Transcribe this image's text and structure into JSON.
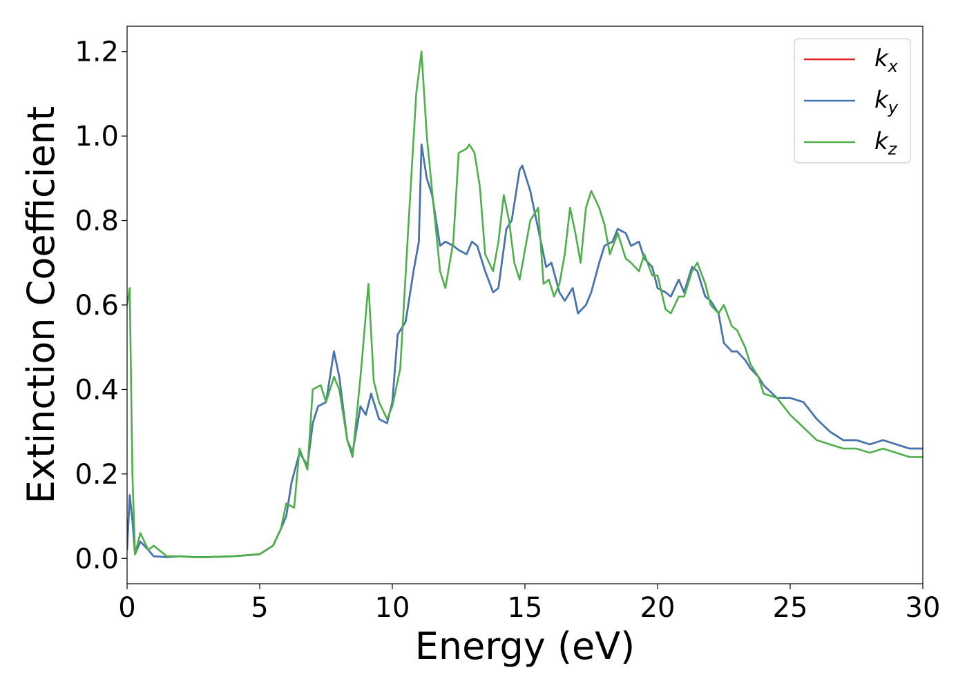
{
  "chart_data": {
    "type": "line",
    "title": "",
    "xlabel": "Energy (eV)",
    "ylabel": "Extinction Coefficient",
    "xlim": [
      0,
      30
    ],
    "ylim": [
      -0.06,
      1.26
    ],
    "xticks": [
      0,
      5,
      10,
      15,
      20,
      25,
      30
    ],
    "xtick_labels": [
      "0",
      "5",
      "10",
      "15",
      "20",
      "25",
      "30"
    ],
    "yticks": [
      0.0,
      0.2,
      0.4,
      0.6,
      0.8,
      1.0,
      1.2
    ],
    "ytick_labels": [
      "0.0",
      "0.2",
      "0.4",
      "0.6",
      "0.8",
      "1.0",
      "1.2"
    ],
    "grid": false,
    "legend_position": "top-right",
    "series": [
      {
        "name": "k_x",
        "legend_base": "k",
        "legend_sub": "x",
        "color": "#e41a1c",
        "x": [
          0,
          0.1,
          0.2,
          0.3,
          0.5,
          0.8,
          1.0,
          1.5,
          2.0,
          2.5,
          3.0,
          4.0,
          5.0,
          5.5,
          5.8,
          6.0,
          6.2,
          6.5,
          6.8,
          7.0,
          7.2,
          7.5,
          7.8,
          8.0,
          8.3,
          8.5,
          8.8,
          9.0,
          9.2,
          9.5,
          9.8,
          10.0,
          10.2,
          10.5,
          10.8,
          11.0,
          11.1,
          11.3,
          11.5,
          11.8,
          12.0,
          12.3,
          12.5,
          12.8,
          13.0,
          13.2,
          13.5,
          13.8,
          14.0,
          14.3,
          14.5,
          14.8,
          14.9,
          15.2,
          15.5,
          15.8,
          16.0,
          16.3,
          16.5,
          16.8,
          17.0,
          17.3,
          17.5,
          17.8,
          18.0,
          18.3,
          18.5,
          18.8,
          19.0,
          19.3,
          19.5,
          19.8,
          20.0,
          20.3,
          20.5,
          20.8,
          21.0,
          21.3,
          21.5,
          21.8,
          22.0,
          22.3,
          22.5,
          22.8,
          23.0,
          23.3,
          23.5,
          23.8,
          24.0,
          24.5,
          25.0,
          25.5,
          26.0,
          26.5,
          27.0,
          27.5,
          28.0,
          28.5,
          29.0,
          29.5,
          30.0
        ],
        "y": [
          0.02,
          0.15,
          0.09,
          0.01,
          0.04,
          0.02,
          0.005,
          0.003,
          0.005,
          0.003,
          0.003,
          0.005,
          0.01,
          0.03,
          0.07,
          0.1,
          0.18,
          0.25,
          0.22,
          0.32,
          0.36,
          0.37,
          0.49,
          0.43,
          0.28,
          0.25,
          0.36,
          0.34,
          0.39,
          0.33,
          0.32,
          0.37,
          0.53,
          0.56,
          0.68,
          0.75,
          0.98,
          0.9,
          0.86,
          0.74,
          0.75,
          0.74,
          0.73,
          0.72,
          0.75,
          0.74,
          0.68,
          0.63,
          0.64,
          0.78,
          0.8,
          0.92,
          0.93,
          0.87,
          0.78,
          0.69,
          0.7,
          0.63,
          0.61,
          0.64,
          0.58,
          0.6,
          0.63,
          0.7,
          0.74,
          0.75,
          0.78,
          0.77,
          0.74,
          0.75,
          0.71,
          0.69,
          0.64,
          0.63,
          0.62,
          0.66,
          0.63,
          0.69,
          0.68,
          0.62,
          0.61,
          0.58,
          0.51,
          0.49,
          0.49,
          0.47,
          0.45,
          0.43,
          0.41,
          0.38,
          0.38,
          0.37,
          0.33,
          0.3,
          0.28,
          0.28,
          0.27,
          0.28,
          0.27,
          0.26,
          0.26
        ]
      },
      {
        "name": "k_y",
        "legend_base": "k",
        "legend_sub": "y",
        "color": "#3f77b4",
        "x": [
          0,
          0.1,
          0.2,
          0.3,
          0.5,
          0.8,
          1.0,
          1.5,
          2.0,
          2.5,
          3.0,
          4.0,
          5.0,
          5.5,
          5.8,
          6.0,
          6.2,
          6.5,
          6.8,
          7.0,
          7.2,
          7.5,
          7.8,
          8.0,
          8.3,
          8.5,
          8.8,
          9.0,
          9.2,
          9.5,
          9.8,
          10.0,
          10.2,
          10.5,
          10.8,
          11.0,
          11.1,
          11.3,
          11.5,
          11.8,
          12.0,
          12.3,
          12.5,
          12.8,
          13.0,
          13.2,
          13.5,
          13.8,
          14.0,
          14.3,
          14.5,
          14.8,
          14.9,
          15.2,
          15.5,
          15.8,
          16.0,
          16.3,
          16.5,
          16.8,
          17.0,
          17.3,
          17.5,
          17.8,
          18.0,
          18.3,
          18.5,
          18.8,
          19.0,
          19.3,
          19.5,
          19.8,
          20.0,
          20.3,
          20.5,
          20.8,
          21.0,
          21.3,
          21.5,
          21.8,
          22.0,
          22.3,
          22.5,
          22.8,
          23.0,
          23.3,
          23.5,
          23.8,
          24.0,
          24.5,
          25.0,
          25.5,
          26.0,
          26.5,
          27.0,
          27.5,
          28.0,
          28.5,
          29.0,
          29.5,
          30.0
        ],
        "y": [
          0.02,
          0.15,
          0.09,
          0.01,
          0.04,
          0.02,
          0.005,
          0.003,
          0.005,
          0.003,
          0.003,
          0.005,
          0.01,
          0.03,
          0.07,
          0.1,
          0.18,
          0.25,
          0.22,
          0.32,
          0.36,
          0.37,
          0.49,
          0.43,
          0.28,
          0.25,
          0.36,
          0.34,
          0.39,
          0.33,
          0.32,
          0.37,
          0.53,
          0.56,
          0.68,
          0.75,
          0.98,
          0.9,
          0.86,
          0.74,
          0.75,
          0.74,
          0.73,
          0.72,
          0.75,
          0.74,
          0.68,
          0.63,
          0.64,
          0.78,
          0.8,
          0.92,
          0.93,
          0.87,
          0.78,
          0.69,
          0.7,
          0.63,
          0.61,
          0.64,
          0.58,
          0.6,
          0.63,
          0.7,
          0.74,
          0.75,
          0.78,
          0.77,
          0.74,
          0.75,
          0.71,
          0.69,
          0.64,
          0.63,
          0.62,
          0.66,
          0.63,
          0.69,
          0.68,
          0.62,
          0.61,
          0.58,
          0.51,
          0.49,
          0.49,
          0.47,
          0.45,
          0.43,
          0.41,
          0.38,
          0.38,
          0.37,
          0.33,
          0.3,
          0.28,
          0.28,
          0.27,
          0.28,
          0.27,
          0.26,
          0.26
        ]
      },
      {
        "name": "k_z",
        "legend_base": "k",
        "legend_sub": "z",
        "color": "#4daf4a",
        "x": [
          0,
          0.1,
          0.2,
          0.3,
          0.5,
          0.8,
          1.0,
          1.5,
          2.0,
          2.5,
          3.0,
          4.0,
          5.0,
          5.5,
          5.8,
          6.0,
          6.3,
          6.5,
          6.8,
          7.0,
          7.3,
          7.5,
          7.8,
          8.0,
          8.3,
          8.5,
          8.8,
          9.1,
          9.3,
          9.5,
          9.8,
          10.0,
          10.3,
          10.6,
          10.9,
          11.1,
          11.3,
          11.5,
          11.8,
          12.0,
          12.3,
          12.5,
          12.8,
          12.9,
          13.1,
          13.3,
          13.5,
          13.8,
          14.0,
          14.2,
          14.4,
          14.6,
          14.8,
          15.0,
          15.2,
          15.5,
          15.7,
          15.9,
          16.1,
          16.3,
          16.5,
          16.7,
          16.9,
          17.1,
          17.3,
          17.5,
          17.8,
          18.0,
          18.2,
          18.5,
          18.8,
          19.0,
          19.3,
          19.5,
          19.8,
          20.0,
          20.3,
          20.5,
          20.8,
          21.0,
          21.3,
          21.5,
          21.8,
          22.0,
          22.3,
          22.5,
          22.8,
          23.0,
          23.3,
          23.5,
          23.8,
          24.0,
          24.5,
          25.0,
          25.5,
          26.0,
          26.5,
          27.0,
          27.5,
          28.0,
          28.5,
          29.0,
          29.5,
          30.0
        ],
        "y": [
          0.6,
          0.64,
          0.2,
          0.01,
          0.06,
          0.02,
          0.03,
          0.005,
          0.005,
          0.003,
          0.003,
          0.005,
          0.01,
          0.03,
          0.07,
          0.13,
          0.12,
          0.26,
          0.21,
          0.4,
          0.41,
          0.37,
          0.43,
          0.4,
          0.28,
          0.24,
          0.43,
          0.65,
          0.42,
          0.37,
          0.33,
          0.36,
          0.45,
          0.78,
          1.1,
          1.2,
          1.0,
          0.87,
          0.68,
          0.64,
          0.75,
          0.96,
          0.97,
          0.98,
          0.96,
          0.88,
          0.72,
          0.68,
          0.75,
          0.86,
          0.8,
          0.7,
          0.66,
          0.73,
          0.8,
          0.83,
          0.65,
          0.66,
          0.62,
          0.65,
          0.72,
          0.83,
          0.77,
          0.7,
          0.83,
          0.87,
          0.83,
          0.79,
          0.72,
          0.77,
          0.71,
          0.7,
          0.68,
          0.72,
          0.67,
          0.67,
          0.59,
          0.58,
          0.62,
          0.62,
          0.68,
          0.7,
          0.65,
          0.6,
          0.58,
          0.6,
          0.55,
          0.54,
          0.5,
          0.46,
          0.43,
          0.39,
          0.38,
          0.34,
          0.31,
          0.28,
          0.27,
          0.26,
          0.26,
          0.25,
          0.26,
          0.25,
          0.24,
          0.24
        ]
      }
    ]
  }
}
